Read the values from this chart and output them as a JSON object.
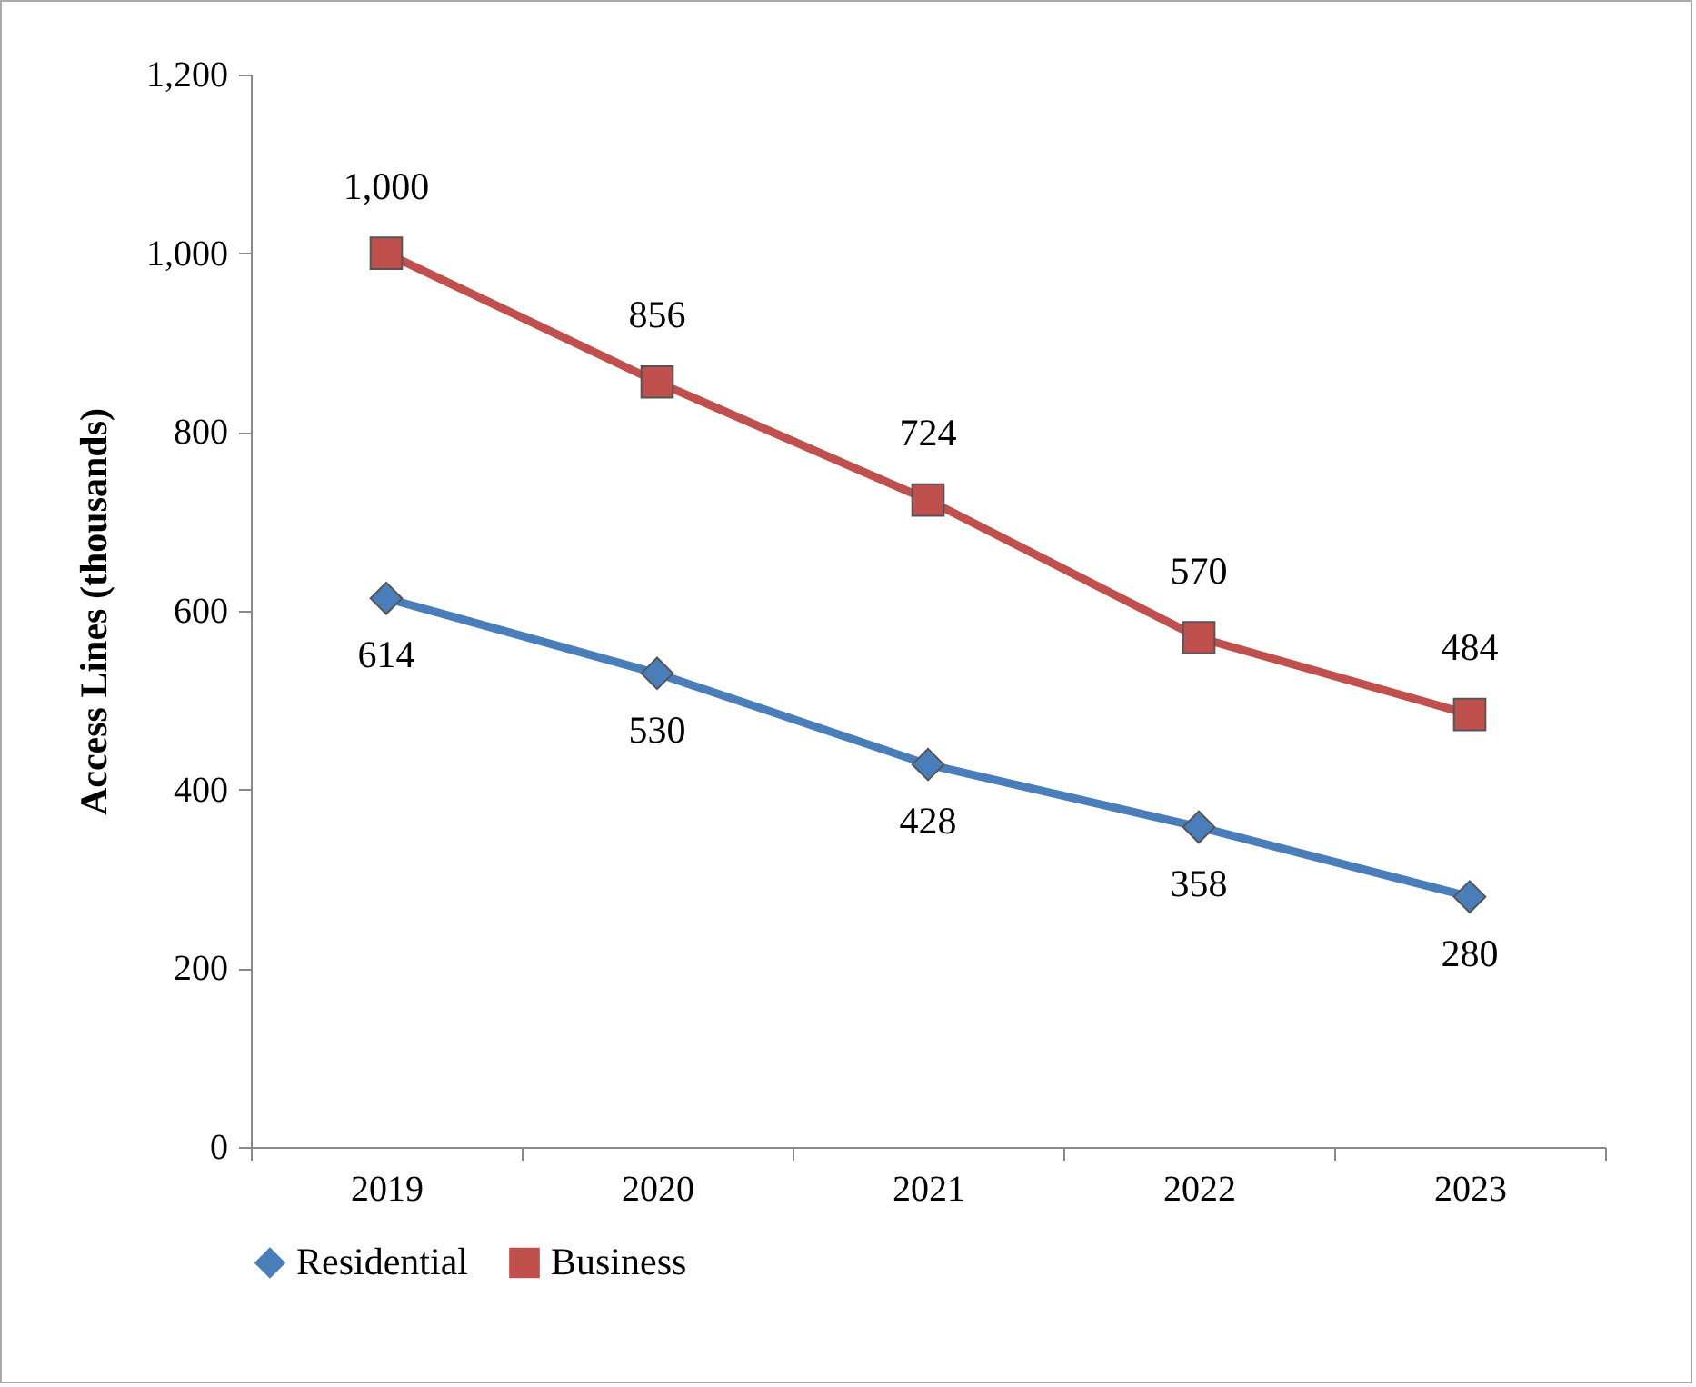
{
  "chart_data": {
    "type": "line",
    "ylabel": "Access Lines (thousands)",
    "categories": [
      "2019",
      "2020",
      "2021",
      "2022",
      "2023"
    ],
    "series": [
      {
        "name": "Residential",
        "color": "#4a7ebb",
        "marker": "diamond",
        "values": [
          614,
          530,
          428,
          358,
          280
        ],
        "value_labels": [
          "614",
          "530",
          "428",
          "358",
          "280"
        ]
      },
      {
        "name": "Business",
        "color": "#c0504d",
        "marker": "square",
        "values": [
          1000,
          856,
          724,
          570,
          484
        ],
        "value_labels": [
          "1,000",
          "856",
          "724",
          "570",
          "484"
        ]
      }
    ],
    "ylim": [
      0,
      1200
    ],
    "yticks": [
      0,
      200,
      400,
      600,
      800,
      {
        "value": 1000,
        "label": "1,000"
      },
      {
        "value": 1200,
        "label": "1,200"
      }
    ],
    "grid": false,
    "legend": "bottom",
    "line_style": "solid"
  }
}
